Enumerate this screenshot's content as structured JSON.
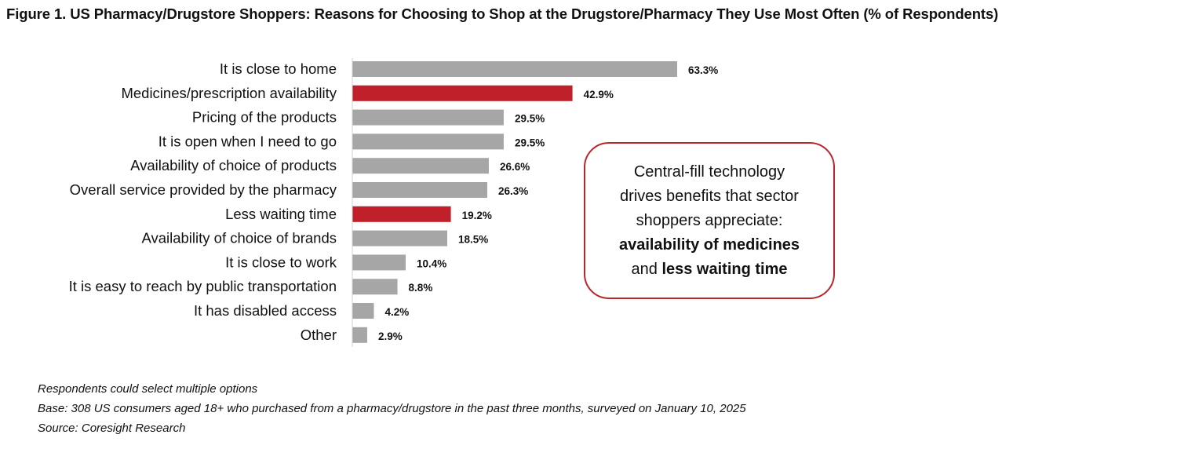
{
  "chart_data": {
    "type": "bar",
    "orientation": "horizontal",
    "title": "Figure 1. US Pharmacy/Drugstore Shoppers: Reasons for Choosing to Shop at the Drugstore/Pharmacy They Use Most Often (% of Respondents)",
    "categories": [
      "It is close to home",
      "Medicines/prescription availability",
      "Pricing of the products",
      "It is open when I need to go",
      "Availability of choice of products",
      "Overall service provided by the pharmacy",
      "Less waiting time",
      "Availability of choice of brands",
      "It is close to work",
      "It is easy to reach by public transportation",
      "It has disabled access",
      "Other"
    ],
    "values": [
      63.3,
      42.9,
      29.5,
      29.5,
      26.6,
      26.3,
      19.2,
      18.5,
      10.4,
      8.8,
      4.2,
      2.9
    ],
    "data_labels": [
      "63.3%",
      "42.9%",
      "29.5%",
      "29.5%",
      "26.6%",
      "26.3%",
      "19.2%",
      "18.5%",
      "10.4%",
      "8.8%",
      "4.2%",
      "2.9%"
    ],
    "highlighted": [
      false,
      true,
      false,
      false,
      false,
      false,
      true,
      false,
      false,
      false,
      false,
      false
    ],
    "unit": "%",
    "xlim": [
      0,
      70
    ],
    "grid": false,
    "colors": {
      "default": "#a6a6a6",
      "highlight": "#c0202a"
    }
  },
  "callout": {
    "line1": "Central-fill technology",
    "line2": "drives benefits that sector",
    "line3": "shoppers appreciate:",
    "bold1": "availability of medicines",
    "line5_pre": "and ",
    "bold2": "less waiting time"
  },
  "notes": {
    "multiple": "Respondents could select multiple options",
    "base": "Base: 308 US consumers aged 18+ who purchased from a pharmacy/drugstore in the past three months, surveyed on January 10, 2025",
    "source": "Source: Coresight Research"
  }
}
